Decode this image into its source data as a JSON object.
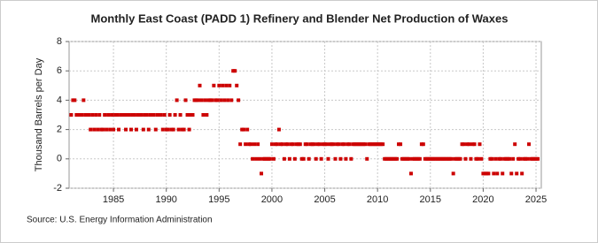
{
  "chart_data": {
    "type": "scatter",
    "title": "Monthly East Coast (PADD 1) Refinery and Blender Net Production of Waxes",
    "y_label": "Thousand Barrels per Day",
    "source": "Source: U.S. Energy Information Administration",
    "color": "#cc0000",
    "grid": true,
    "xlim": [
      1980.8,
      2025.5
    ],
    "xticks": [
      1985,
      1990,
      1995,
      2000,
      2005,
      2010,
      2015,
      2020,
      2025
    ],
    "ylim": [
      -2,
      8
    ],
    "yticks": [
      -2,
      0,
      2,
      4,
      6,
      8
    ],
    "x": [
      1981.0,
      1981.17,
      1981.33,
      1981.5,
      1981.67,
      1981.83,
      1982.0,
      1982.17,
      1982.33,
      1982.5,
      1982.67,
      1982.83,
      1983.0,
      1983.17,
      1983.33,
      1983.5,
      1983.67,
      1983.83,
      1984.0,
      1984.17,
      1984.33,
      1984.5,
      1984.67,
      1984.83,
      1985.0,
      1985.17,
      1985.33,
      1985.5,
      1985.67,
      1985.83,
      1986.0,
      1986.17,
      1986.33,
      1986.5,
      1986.67,
      1986.83,
      1987.0,
      1987.17,
      1987.33,
      1987.5,
      1987.67,
      1987.83,
      1988.0,
      1988.17,
      1988.33,
      1988.5,
      1988.67,
      1988.83,
      1989.0,
      1989.17,
      1989.33,
      1989.5,
      1989.67,
      1989.83,
      1990.0,
      1990.17,
      1990.33,
      1990.5,
      1990.67,
      1990.83,
      1991.0,
      1991.17,
      1991.33,
      1991.5,
      1991.67,
      1991.83,
      1992.0,
      1992.17,
      1992.33,
      1992.5,
      1992.67,
      1992.83,
      1993.0,
      1993.17,
      1993.33,
      1993.5,
      1993.67,
      1993.83,
      1994.0,
      1994.17,
      1994.33,
      1994.5,
      1994.67,
      1994.83,
      1995.0,
      1995.17,
      1995.33,
      1995.5,
      1995.67,
      1995.83,
      1996.0,
      1996.17,
      1996.33,
      1996.5,
      1996.67,
      1996.83,
      1997.0,
      1997.17,
      1997.33,
      1997.5,
      1997.67,
      1997.83,
      1998.0,
      1998.17,
      1998.33,
      1998.5,
      1998.67,
      1998.83,
      1999.0,
      1999.17,
      1999.33,
      1999.5,
      1999.67,
      1999.83,
      2000.0,
      2000.17,
      2000.33,
      2000.5,
      2000.67,
      2000.83,
      2001.0,
      2001.17,
      2001.33,
      2001.5,
      2001.67,
      2001.83,
      2002.0,
      2002.17,
      2002.33,
      2002.5,
      2002.67,
      2002.83,
      2003.0,
      2003.17,
      2003.33,
      2003.5,
      2003.67,
      2003.83,
      2004.0,
      2004.17,
      2004.33,
      2004.5,
      2004.67,
      2004.83,
      2005.0,
      2005.17,
      2005.33,
      2005.5,
      2005.67,
      2005.83,
      2006.0,
      2006.17,
      2006.33,
      2006.5,
      2006.67,
      2006.83,
      2007.0,
      2007.17,
      2007.33,
      2007.5,
      2007.67,
      2007.83,
      2008.0,
      2008.17,
      2008.33,
      2008.5,
      2008.67,
      2008.83,
      2009.0,
      2009.17,
      2009.33,
      2009.5,
      2009.67,
      2009.83,
      2010.0,
      2010.17,
      2010.33,
      2010.5,
      2010.67,
      2010.83,
      2011.0,
      2011.17,
      2011.33,
      2011.5,
      2011.67,
      2011.83,
      2012.0,
      2012.17,
      2012.33,
      2012.5,
      2012.67,
      2012.83,
      2013.0,
      2013.17,
      2013.33,
      2013.5,
      2013.67,
      2013.83,
      2014.0,
      2014.17,
      2014.33,
      2014.5,
      2014.67,
      2014.83,
      2015.0,
      2015.17,
      2015.33,
      2015.5,
      2015.67,
      2015.83,
      2016.0,
      2016.17,
      2016.33,
      2016.5,
      2016.67,
      2016.83,
      2017.0,
      2017.17,
      2017.33,
      2017.5,
      2017.67,
      2017.83,
      2018.0,
      2018.17,
      2018.33,
      2018.5,
      2018.67,
      2018.83,
      2019.0,
      2019.17,
      2019.33,
      2019.5,
      2019.67,
      2019.83,
      2020.0,
      2020.17,
      2020.33,
      2020.5,
      2020.67,
      2020.83,
      2021.0,
      2021.17,
      2021.33,
      2021.5,
      2021.67,
      2021.83,
      2022.0,
      2022.17,
      2022.33,
      2022.5,
      2022.67,
      2022.83,
      2023.0,
      2023.17,
      2023.33,
      2023.5,
      2023.67,
      2023.83,
      2024.0,
      2024.17,
      2024.33,
      2024.5,
      2024.67,
      2024.83,
      2025.0,
      2025.17
    ],
    "values": [
      3,
      4,
      4,
      3,
      3,
      3,
      3,
      4,
      3,
      3,
      3,
      2,
      3,
      2,
      3,
      2,
      3,
      2,
      2,
      3,
      2,
      3,
      2,
      3,
      2,
      3,
      3,
      2,
      3,
      3,
      3,
      2,
      3,
      3,
      2,
      3,
      3,
      2,
      3,
      3,
      3,
      2,
      3,
      3,
      2,
      3,
      3,
      3,
      2,
      3,
      3,
      3,
      2,
      3,
      2,
      2,
      3,
      2,
      2,
      3,
      4,
      2,
      3,
      2,
      2,
      4,
      3,
      2,
      3,
      3,
      4,
      4,
      4,
      5,
      4,
      3,
      4,
      3,
      4,
      4,
      4,
      5,
      4,
      4,
      5,
      4,
      5,
      4,
      5,
      4,
      5,
      4,
      6,
      6,
      5,
      4,
      1,
      2,
      2,
      1,
      2,
      1,
      1,
      0,
      1,
      0,
      1,
      0,
      -1,
      0,
      0,
      0,
      0,
      0,
      1,
      0,
      1,
      1,
      2,
      1,
      1,
      0,
      1,
      1,
      0,
      1,
      1,
      0,
      1,
      1,
      1,
      0,
      0,
      1,
      1,
      0,
      1,
      1,
      1,
      0,
      1,
      1,
      0,
      1,
      1,
      1,
      0,
      1,
      1,
      1,
      0,
      1,
      1,
      0,
      1,
      1,
      0,
      1,
      1,
      0,
      1,
      1,
      1,
      1,
      1,
      1,
      1,
      1,
      0,
      1,
      1,
      1,
      1,
      1,
      1,
      1,
      1,
      1,
      0,
      0,
      0,
      0,
      0,
      0,
      0,
      0,
      1,
      1,
      0,
      0,
      0,
      0,
      0,
      -1,
      0,
      0,
      0,
      0,
      0,
      1,
      1,
      0,
      0,
      0,
      0,
      0,
      0,
      0,
      0,
      0,
      0,
      0,
      0,
      0,
      0,
      0,
      0,
      -1,
      0,
      0,
      0,
      0,
      1,
      1,
      0,
      1,
      1,
      0,
      1,
      1,
      0,
      0,
      1,
      0,
      -1,
      -1,
      -1,
      -1,
      0,
      0,
      -1,
      0,
      -1,
      0,
      0,
      -1,
      0,
      0,
      0,
      0,
      -1,
      0,
      1,
      -1,
      0,
      0,
      -1,
      0,
      0,
      0,
      1,
      0,
      0,
      0,
      0,
      0
    ]
  }
}
